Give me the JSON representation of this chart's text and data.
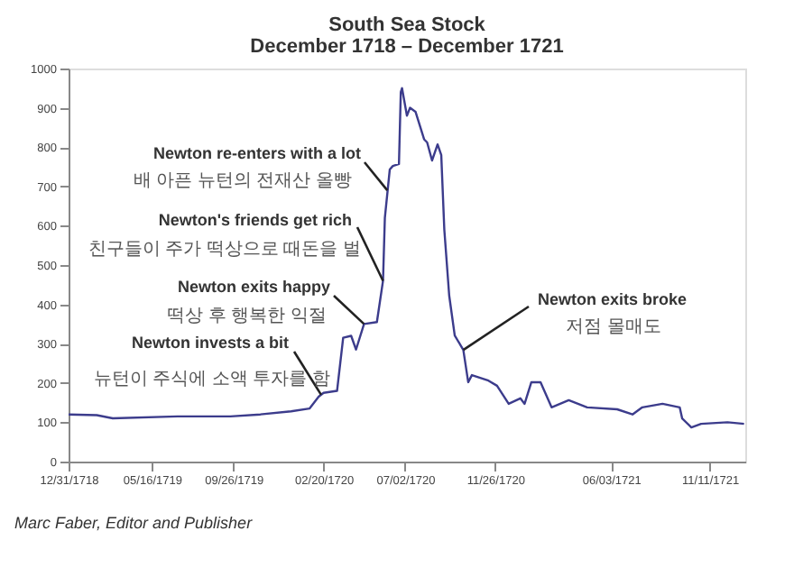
{
  "chart_data": {
    "type": "line",
    "title": "South Sea Stock",
    "subtitle": "December 1718 – December 1721",
    "x": [
      "1718-12-31",
      "1719-02-15",
      "1719-03-13",
      "1719-06-27",
      "1719-09-21",
      "1719-11-09",
      "1719-12-29",
      "1720-01-28",
      "1720-02-12",
      "1720-02-20",
      "1720-03-13",
      "1720-03-23",
      "1720-04-05",
      "1720-04-13",
      "1720-04-26",
      "1720-05-17",
      "1720-05-27",
      "1720-05-30",
      "1720-06-07",
      "1720-06-12",
      "1720-06-22",
      "1720-06-25",
      "1720-06-27",
      "1720-07-05",
      "1720-07-10",
      "1720-07-19",
      "1720-08-02",
      "1720-08-07",
      "1720-08-15",
      "1720-08-24",
      "1720-08-30",
      "1720-09-04",
      "1720-09-12",
      "1720-09-21",
      "1720-10-05",
      "1720-10-13",
      "1720-10-19",
      "1720-11-15",
      "1720-11-29",
      "1720-12-18",
      "1721-01-06",
      "1721-01-13",
      "1721-01-24",
      "1721-02-08",
      "1721-02-26",
      "1721-03-26",
      "1721-04-25",
      "1721-06-13",
      "1721-07-08",
      "1721-07-24",
      "1721-08-26",
      "1721-09-23",
      "1721-09-27",
      "1721-10-12",
      "1721-10-28",
      "1721-12-10",
      "1722-01-06"
    ],
    "series": [
      {
        "color": "#3c3c8c",
        "values": [
          120,
          118,
          110,
          115,
          115,
          120,
          128,
          135,
          165,
          175,
          180,
          315,
          320,
          285,
          350,
          355,
          460,
          620,
          743,
          752,
          757,
          940,
          950,
          880,
          900,
          890,
          820,
          812,
          766,
          807,
          780,
          590,
          422,
          321,
          284,
          202,
          220,
          206,
          193,
          147,
          161,
          147,
          202,
          202,
          138,
          156,
          138,
          133,
          120,
          138,
          147,
          138,
          110,
          87,
          96,
          100,
          96
        ]
      }
    ],
    "xlim": [
      "1718-12-31",
      "1722-01-08"
    ],
    "xticks": [
      {
        "value": "1718-12-31",
        "label": "12/31/1718"
      },
      {
        "value": "1719-05-16",
        "label": "05/16/1719"
      },
      {
        "value": "1719-09-26",
        "label": "09/26/1719"
      },
      {
        "value": "1720-02-20",
        "label": "02/20/1720"
      },
      {
        "value": "1720-07-02",
        "label": "07/02/1720"
      },
      {
        "value": "1720-11-26",
        "label": "11/26/1720"
      },
      {
        "value": "1721-06-03",
        "label": "06/03/1721"
      },
      {
        "value": "1721-11-11",
        "label": "11/11/1721"
      }
    ],
    "ylim": [
      0,
      1000
    ],
    "yticks": [
      0,
      100,
      200,
      300,
      400,
      500,
      600,
      700,
      800,
      900,
      1000
    ],
    "grid": false,
    "marker": "none",
    "line_style": "solid",
    "annotations": [
      {
        "text": "Newton re-enters with a lot\n배 아픈 뉴턴의 전재산 올빵",
        "x": "1720-06-03",
        "y": 690
      },
      {
        "text": "Newton's friends get rich\n친구들이 주가 떡상으로 때돈을 벌",
        "x": "1720-05-27",
        "y": 460
      },
      {
        "text": "Newton exits happy\n떡상 후 행복한 익절",
        "x": "1720-04-26",
        "y": 350
      },
      {
        "text": "Newton invests a bit\n뉴턴이 주식에 소액 투자를 함",
        "x": "1720-02-16",
        "y": 170
      },
      {
        "text": "Newton exits broke\n저점 몰매도",
        "x": "1720-10-05",
        "y": 284
      },
      "Marc Faber, Editor and Publisher"
    ]
  }
}
